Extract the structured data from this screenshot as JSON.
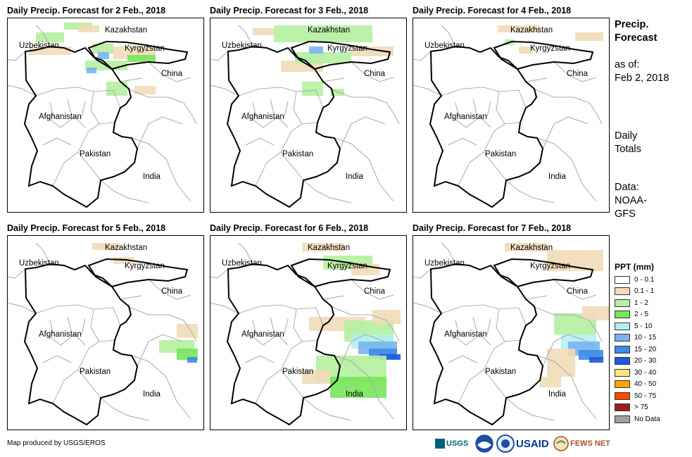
{
  "panels": [
    {
      "title": "Daily Precip. Forecast for 2 Feb., 2018"
    },
    {
      "title": "Daily Precip. Forecast for 3 Feb., 2018"
    },
    {
      "title": "Daily Precip. Forecast for 4 Feb., 2018"
    },
    {
      "title": "Daily Precip. Forecast for 5 Feb., 2018"
    },
    {
      "title": "Daily Precip. Forecast for 6 Feb., 2018"
    },
    {
      "title": "Daily Precip. Forecast for 7 Feb., 2018"
    }
  ],
  "countries": {
    "kazakhstan": "Kazakhstan",
    "uzbekistan": "Uzbekistan",
    "kyrgyzstan": "Kyrgyzstan",
    "china": "China",
    "afghanistan": "Afghanistan",
    "pakistan": "Pakistan",
    "india": "India"
  },
  "side": {
    "title_line1": "Precip.",
    "title_line2": "Forecast",
    "asof_label": "as of:",
    "asof_date": "Feb 2, 2018",
    "totals_line1": "Daily",
    "totals_line2": "Totals",
    "data_line1": "Data:",
    "data_line2": "NOAA-",
    "data_line3": "GFS"
  },
  "legend": {
    "title": "PPT (mm)",
    "items": [
      {
        "label": "0 - 0.1",
        "color": "#ffffff"
      },
      {
        "label": "0.1 - 1",
        "color": "#f0dcb8"
      },
      {
        "label": "1 - 2",
        "color": "#b4f0a0"
      },
      {
        "label": "2 - 5",
        "color": "#78e65a"
      },
      {
        "label": "5 - 10",
        "color": "#b4f0f0"
      },
      {
        "label": "10 - 15",
        "color": "#78b4f0"
      },
      {
        "label": "15 - 20",
        "color": "#3c8ce6"
      },
      {
        "label": "20 - 30",
        "color": "#1e5adc"
      },
      {
        "label": "30 - 40",
        "color": "#ffe678"
      },
      {
        "label": "40 - 50",
        "color": "#ffa500"
      },
      {
        "label": "50 - 75",
        "color": "#ff4500"
      },
      {
        "label": "> 75",
        "color": "#a01e1e"
      },
      {
        "label": "No Data",
        "color": "#a0a0a0"
      }
    ]
  },
  "footer": {
    "credit": "Map produced by USGS/EROS"
  },
  "logos": {
    "usgs": "USGS",
    "usaid": "USAID",
    "fewsnet": "FEWS NET"
  }
}
